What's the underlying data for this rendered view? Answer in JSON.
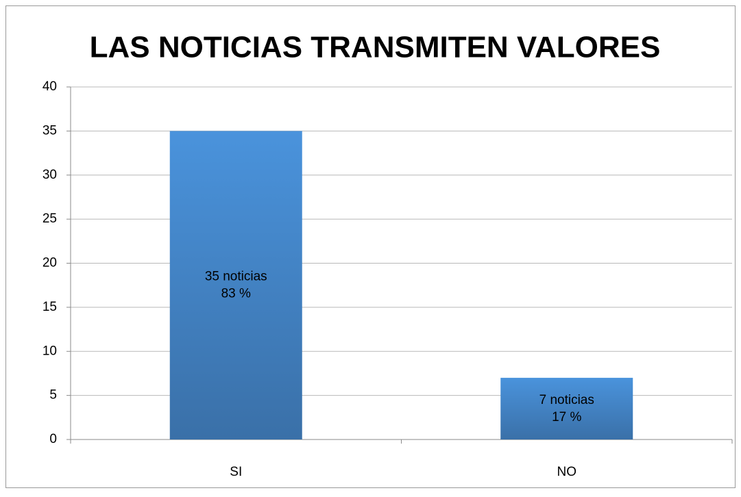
{
  "chart_data": {
    "type": "bar",
    "title": "LAS NOTICIAS TRANSMITEN VALORES",
    "categories": [
      "SI",
      "NO"
    ],
    "values": [
      35,
      7
    ],
    "value_labels": [
      "35 noticias",
      "7 noticias"
    ],
    "share_labels": [
      "83 %",
      "17 %"
    ],
    "color": "#4a8fd6",
    "ylim": [
      0,
      40
    ],
    "yticks": [
      0,
      5,
      10,
      15,
      20,
      25,
      30,
      35,
      40
    ],
    "grid": true
  }
}
